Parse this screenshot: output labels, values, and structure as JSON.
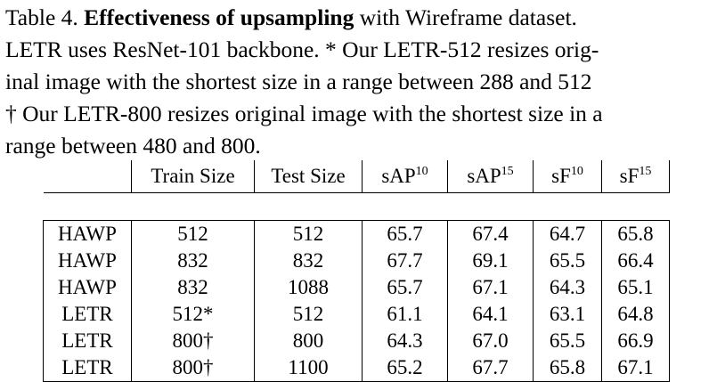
{
  "caption": {
    "label": "Table 4.",
    "title": "Effectiveness of upsampling",
    "line1_rest": " with Wireframe dataset.",
    "line2": "LETR uses ResNet-101 backbone. * Our LETR-512 resizes orig-",
    "line3": "inal image with the shortest size in a range between 288 and 512",
    "line4": "† Our LETR-800 resizes original image with the shortest size in a",
    "line5": "range between 480 and 800."
  },
  "table": {
    "headers": [
      {
        "text": "",
        "sup": ""
      },
      {
        "text": "Train Size",
        "sup": ""
      },
      {
        "text": "Test Size",
        "sup": ""
      },
      {
        "text": "sAP",
        "sup": "10"
      },
      {
        "text": "sAP",
        "sup": "15"
      },
      {
        "text": "sF",
        "sup": "10"
      },
      {
        "text": "sF",
        "sup": "15"
      }
    ],
    "rows": [
      {
        "cells": [
          "HAWP",
          "512",
          "512",
          "65.7",
          "67.4",
          "64.7",
          "65.8"
        ],
        "bold": []
      },
      {
        "cells": [
          "HAWP",
          "832",
          "832",
          "67.7",
          "69.1",
          "65.5",
          "66.4"
        ],
        "bold": [
          3,
          4
        ]
      },
      {
        "cells": [
          "HAWP",
          "832",
          "1088",
          "65.7",
          "67.1",
          "64.3",
          "65.1"
        ],
        "bold": []
      },
      {
        "cells": [
          "LETR",
          "512*",
          "512",
          "61.1",
          "64.1",
          "63.1",
          "64.8"
        ],
        "bold": []
      },
      {
        "cells": [
          "LETR",
          "800†",
          "800",
          "64.3",
          "67.0",
          "65.5",
          "66.9"
        ],
        "bold": []
      },
      {
        "cells": [
          "LETR",
          "800†",
          "1100",
          "65.2",
          "67.7",
          "65.8",
          "67.1"
        ],
        "bold": [
          5,
          6
        ]
      }
    ]
  }
}
